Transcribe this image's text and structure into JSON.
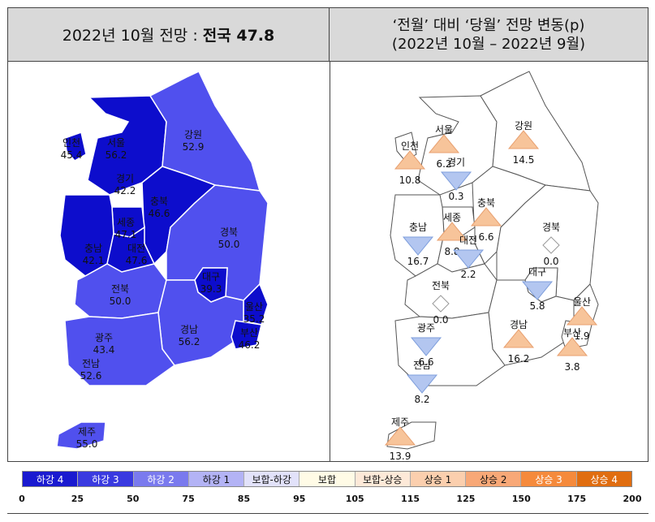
{
  "left_panel": {
    "title_prefix": "2022년 10월 전망 :",
    "title_bold": "전국 47.8"
  },
  "right_panel": {
    "title_line1": "‘전월’ 대비 ‘당월’ 전망 변동(p)",
    "title_line2": "(2022년 10월 – 2022년 9월)"
  },
  "outlook_regions": [
    {
      "name": "서울",
      "value": "56.2",
      "color": "#2222dd"
    },
    {
      "name": "인천",
      "value": "45.4",
      "color": "#0d0dcc"
    },
    {
      "name": "경기",
      "value": "42.2",
      "color": "#0d0dcc"
    },
    {
      "name": "강원",
      "value": "52.9",
      "color": "#5050ee"
    },
    {
      "name": "충북",
      "value": "46.6",
      "color": "#0d0dcc"
    },
    {
      "name": "세종",
      "value": "47.1",
      "color": "#0d0dcc"
    },
    {
      "name": "충남",
      "value": "42.1",
      "color": "#0d0dcc"
    },
    {
      "name": "대전",
      "value": "47.6",
      "color": "#0d0dcc"
    },
    {
      "name": "경북",
      "value": "50.0",
      "color": "#5050ee"
    },
    {
      "name": "대구",
      "value": "39.3",
      "color": "#0d0dcc"
    },
    {
      "name": "전북",
      "value": "50.0",
      "color": "#5050ee"
    },
    {
      "name": "울산",
      "value": "35.2",
      "color": "#0d0dcc"
    },
    {
      "name": "경남",
      "value": "56.2",
      "color": "#5050ee"
    },
    {
      "name": "부산",
      "value": "46.2",
      "color": "#0d0dcc"
    },
    {
      "name": "광주",
      "value": "43.4",
      "color": "#0d0dcc"
    },
    {
      "name": "전남",
      "value": "52.6",
      "color": "#5050ee"
    },
    {
      "name": "제주",
      "value": "55.0",
      "color": "#5050ee"
    }
  ],
  "change_regions": [
    {
      "name": "서울",
      "value": "6.2",
      "dir": "up"
    },
    {
      "name": "인천",
      "value": "10.8",
      "dir": "up"
    },
    {
      "name": "경기",
      "value": "0.3",
      "dir": "down"
    },
    {
      "name": "강원",
      "value": "14.5",
      "dir": "up"
    },
    {
      "name": "충북",
      "value": "6.6",
      "dir": "up"
    },
    {
      "name": "세종",
      "value": "8.8",
      "dir": "up"
    },
    {
      "name": "충남",
      "value": "16.7",
      "dir": "down"
    },
    {
      "name": "대전",
      "value": "2.2",
      "dir": "down"
    },
    {
      "name": "경북",
      "value": "0.0",
      "dir": "none"
    },
    {
      "name": "전북",
      "value": "0.0",
      "dir": "none"
    },
    {
      "name": "대구",
      "value": "5.8",
      "dir": "down"
    },
    {
      "name": "울산",
      "value": "1.9",
      "dir": "up"
    },
    {
      "name": "경남",
      "value": "16.2",
      "dir": "up"
    },
    {
      "name": "부산",
      "value": "3.8",
      "dir": "up"
    },
    {
      "name": "광주",
      "value": "6.6",
      "dir": "down"
    },
    {
      "name": "전남",
      "value": "8.2",
      "dir": "down"
    },
    {
      "name": "제주",
      "value": "13.9",
      "dir": "up"
    }
  ],
  "symbol_colors": {
    "up": "#f7c49a",
    "down": "#b3c6f0",
    "none": "#ffffff"
  },
  "legend": {
    "categories": [
      {
        "label": "하강 4",
        "color": "#1a1ad0"
      },
      {
        "label": "하강 3",
        "color": "#3a3ae0"
      },
      {
        "label": "하강 2",
        "color": "#7a7aee"
      },
      {
        "label": "하강 1",
        "color": "#b3b3f5"
      },
      {
        "label": "보합-하강",
        "color": "#e2e2fa"
      },
      {
        "label": "보합",
        "color": "#fffbe6"
      },
      {
        "label": "보합-상승",
        "color": "#fde9d8"
      },
      {
        "label": "상승 1",
        "color": "#fbcfae"
      },
      {
        "label": "상승 2",
        "color": "#f8a877"
      },
      {
        "label": "상승 3",
        "color": "#f58a3c"
      },
      {
        "label": "상승 4",
        "color": "#e06d10"
      }
    ],
    "ticks": [
      "0",
      "25",
      "50",
      "75",
      "85",
      "95",
      "105",
      "115",
      "125",
      "150",
      "175",
      "200"
    ]
  }
}
